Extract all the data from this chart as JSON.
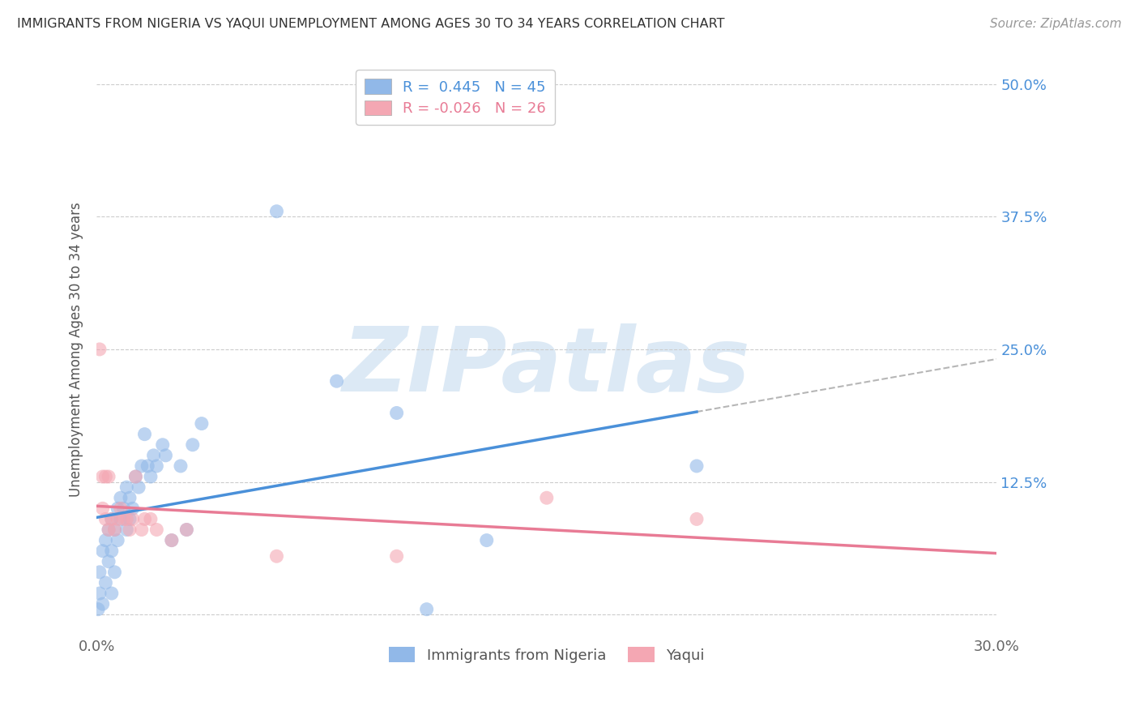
{
  "title": "IMMIGRANTS FROM NIGERIA VS YAQUI UNEMPLOYMENT AMONG AGES 30 TO 34 YEARS CORRELATION CHART",
  "source": "Source: ZipAtlas.com",
  "ylabel": "Unemployment Among Ages 30 to 34 years",
  "xlim": [
    0.0,
    0.3
  ],
  "ylim": [
    -0.02,
    0.52
  ],
  "xticks": [
    0.0,
    0.05,
    0.1,
    0.15,
    0.2,
    0.25,
    0.3
  ],
  "xticklabels": [
    "0.0%",
    "",
    "",
    "",
    "",
    "",
    "30.0%"
  ],
  "yticks": [
    0.0,
    0.125,
    0.25,
    0.375,
    0.5
  ],
  "yticklabels": [
    "",
    "12.5%",
    "25.0%",
    "37.5%",
    "50.0%"
  ],
  "blue_scatter": [
    [
      0.0005,
      0.005
    ],
    [
      0.001,
      0.02
    ],
    [
      0.001,
      0.04
    ],
    [
      0.002,
      0.01
    ],
    [
      0.002,
      0.06
    ],
    [
      0.003,
      0.03
    ],
    [
      0.003,
      0.07
    ],
    [
      0.004,
      0.05
    ],
    [
      0.004,
      0.08
    ],
    [
      0.005,
      0.02
    ],
    [
      0.005,
      0.06
    ],
    [
      0.005,
      0.09
    ],
    [
      0.006,
      0.04
    ],
    [
      0.006,
      0.08
    ],
    [
      0.007,
      0.07
    ],
    [
      0.007,
      0.1
    ],
    [
      0.008,
      0.09
    ],
    [
      0.008,
      0.11
    ],
    [
      0.009,
      0.1
    ],
    [
      0.01,
      0.08
    ],
    [
      0.01,
      0.12
    ],
    [
      0.011,
      0.09
    ],
    [
      0.011,
      0.11
    ],
    [
      0.012,
      0.1
    ],
    [
      0.013,
      0.13
    ],
    [
      0.014,
      0.12
    ],
    [
      0.015,
      0.14
    ],
    [
      0.016,
      0.17
    ],
    [
      0.017,
      0.14
    ],
    [
      0.018,
      0.13
    ],
    [
      0.019,
      0.15
    ],
    [
      0.02,
      0.14
    ],
    [
      0.022,
      0.16
    ],
    [
      0.023,
      0.15
    ],
    [
      0.025,
      0.07
    ],
    [
      0.028,
      0.14
    ],
    [
      0.03,
      0.08
    ],
    [
      0.032,
      0.16
    ],
    [
      0.035,
      0.18
    ],
    [
      0.06,
      0.38
    ],
    [
      0.08,
      0.22
    ],
    [
      0.1,
      0.19
    ],
    [
      0.11,
      0.005
    ],
    [
      0.13,
      0.07
    ],
    [
      0.2,
      0.14
    ]
  ],
  "pink_scatter": [
    [
      0.001,
      0.25
    ],
    [
      0.002,
      0.13
    ],
    [
      0.002,
      0.1
    ],
    [
      0.003,
      0.13
    ],
    [
      0.003,
      0.09
    ],
    [
      0.004,
      0.08
    ],
    [
      0.004,
      0.13
    ],
    [
      0.005,
      0.09
    ],
    [
      0.006,
      0.08
    ],
    [
      0.007,
      0.09
    ],
    [
      0.008,
      0.1
    ],
    [
      0.009,
      0.09
    ],
    [
      0.01,
      0.09
    ],
    [
      0.011,
      0.08
    ],
    [
      0.012,
      0.09
    ],
    [
      0.013,
      0.13
    ],
    [
      0.015,
      0.08
    ],
    [
      0.016,
      0.09
    ],
    [
      0.018,
      0.09
    ],
    [
      0.02,
      0.08
    ],
    [
      0.025,
      0.07
    ],
    [
      0.03,
      0.08
    ],
    [
      0.06,
      0.055
    ],
    [
      0.1,
      0.055
    ],
    [
      0.15,
      0.11
    ],
    [
      0.2,
      0.09
    ]
  ],
  "blue_line_color": "#4a90d9",
  "pink_line_color": "#e87b95",
  "gray_dash_color": "#aaaaaa",
  "blue_scatter_color": "#91b8e8",
  "pink_scatter_color": "#f4a7b3",
  "watermark_text": "ZIPatlas",
  "watermark_color": "#dce9f5",
  "background_color": "#ffffff",
  "grid_color": "#cccccc",
  "blue_trendline_xmax": 0.2,
  "blue_R": "0.445",
  "blue_N": "45",
  "pink_R": "-0.026",
  "pink_N": "26"
}
